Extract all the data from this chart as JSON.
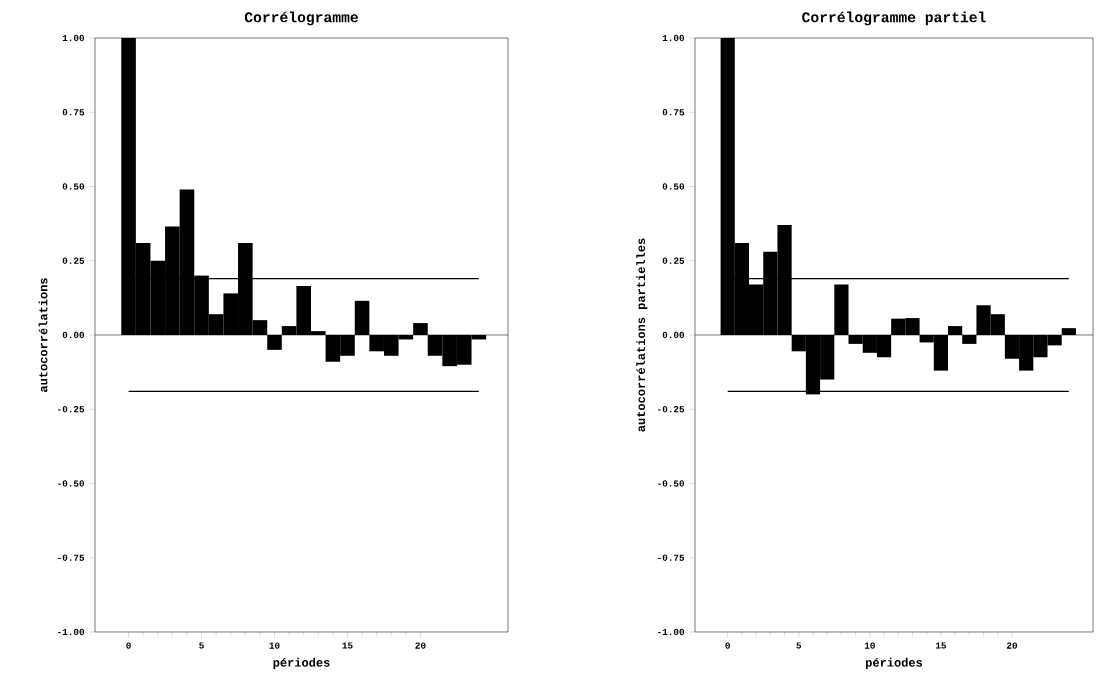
{
  "chart_data": [
    {
      "type": "bar",
      "title": "Corrélogramme",
      "xlabel": "périodes",
      "ylabel": "autocorrélations",
      "x": [
        0,
        1,
        2,
        3,
        4,
        5,
        6,
        7,
        8,
        9,
        10,
        11,
        12,
        13,
        14,
        15,
        16,
        17,
        18,
        19,
        20,
        21,
        22,
        23,
        24
      ],
      "values": [
        1.0,
        0.31,
        0.25,
        0.365,
        0.49,
        0.2,
        0.07,
        0.14,
        0.31,
        0.05,
        -0.05,
        0.03,
        0.165,
        0.013,
        -0.09,
        -0.07,
        0.115,
        -0.055,
        -0.07,
        -0.015,
        0.04,
        -0.07,
        -0.105,
        -0.1,
        -0.015
      ],
      "color": "#000000",
      "xlim": [
        -2.3,
        26
      ],
      "xticks": [
        0,
        5,
        10,
        15,
        20
      ],
      "ylim": [
        -1,
        1
      ],
      "yticks": [
        {
          "value": -1,
          "label": "-1.00"
        },
        {
          "value": -0.75,
          "label": "-0.75"
        },
        {
          "value": -0.5,
          "label": "-0.50"
        },
        {
          "value": -0.25,
          "label": "-0.25"
        },
        {
          "value": 0,
          "label": "0.00"
        },
        {
          "value": 0.25,
          "label": "0.25"
        },
        {
          "value": 0.5,
          "label": "0.50"
        },
        {
          "value": 0.75,
          "label": "0.75"
        },
        {
          "value": 1,
          "label": "1.00"
        }
      ],
      "ref_lines": [
        {
          "axis": "y",
          "value": 0.19,
          "color": "#000000",
          "line_style": "solid"
        },
        {
          "axis": "y",
          "value": -0.19,
          "color": "#000000",
          "line_style": "solid"
        }
      ]
    },
    {
      "type": "bar",
      "title": "Corrélogramme partiel",
      "xlabel": "périodes",
      "ylabel": "autocorrélations partielles",
      "x": [
        0,
        1,
        2,
        3,
        4,
        5,
        6,
        7,
        8,
        9,
        10,
        11,
        12,
        13,
        14,
        15,
        16,
        17,
        18,
        19,
        20,
        21,
        22,
        23,
        24
      ],
      "values": [
        1.0,
        0.31,
        0.17,
        0.28,
        0.37,
        -0.055,
        -0.2,
        -0.15,
        0.17,
        -0.03,
        -0.06,
        -0.075,
        0.055,
        0.057,
        -0.025,
        -0.12,
        0.03,
        -0.03,
        0.1,
        0.07,
        -0.08,
        -0.12,
        -0.075,
        -0.035,
        0.023
      ],
      "color": "#000000",
      "xlim": [
        -2.3,
        25.7
      ],
      "xticks": [
        0,
        5,
        10,
        15,
        20
      ],
      "ylim": [
        -1,
        1
      ],
      "yticks": [
        {
          "value": -1,
          "label": "-1.00"
        },
        {
          "value": -0.75,
          "label": "-0.75"
        },
        {
          "value": -0.5,
          "label": "-0.50"
        },
        {
          "value": -0.25,
          "label": "-0.25"
        },
        {
          "value": 0,
          "label": "0.00"
        },
        {
          "value": 0.25,
          "label": "0.25"
        },
        {
          "value": 0.5,
          "label": "0.50"
        },
        {
          "value": 0.75,
          "label": "0.75"
        },
        {
          "value": 1,
          "label": "1.00"
        }
      ],
      "ref_lines": [
        {
          "axis": "y",
          "value": 0.19,
          "color": "#000000",
          "line_style": "solid"
        },
        {
          "axis": "y",
          "value": -0.19,
          "color": "#000000",
          "line_style": "solid"
        }
      ]
    }
  ]
}
